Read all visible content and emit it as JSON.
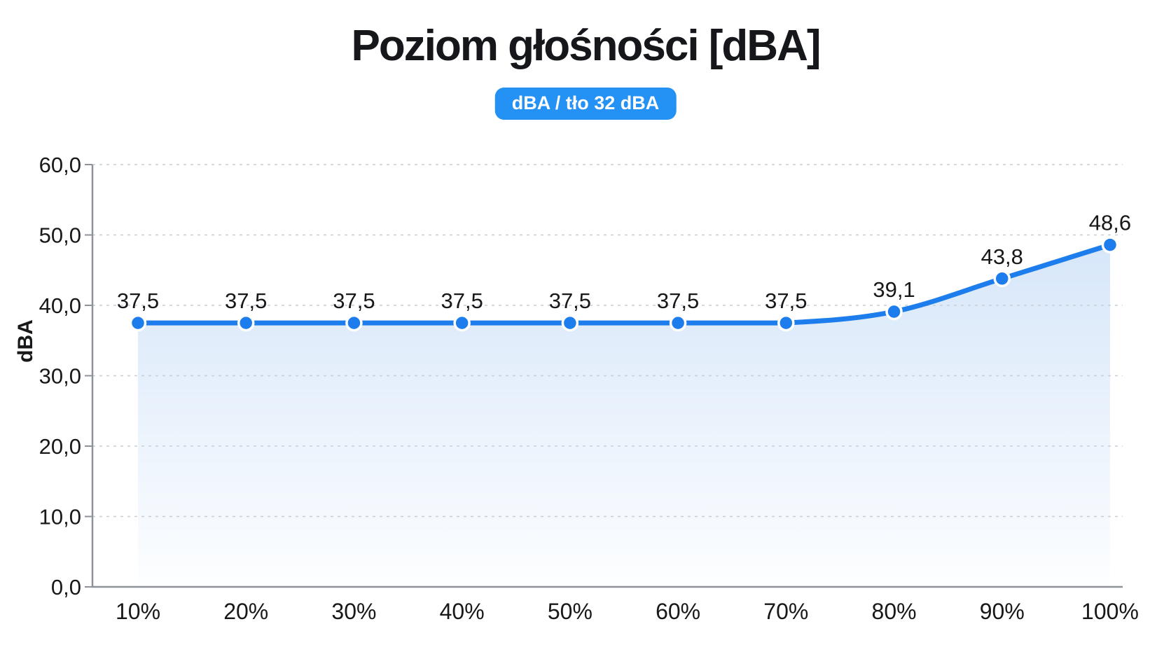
{
  "chart_data": {
    "type": "line",
    "title": "Poziom głośności [dBA]",
    "legend": "dBA / tło 32 dBA",
    "ylabel": "dBA",
    "categories": [
      "10%",
      "20%",
      "30%",
      "40%",
      "50%",
      "60%",
      "70%",
      "80%",
      "90%",
      "100%"
    ],
    "series": [
      {
        "name": "dBA / tło 32 dBA",
        "values": [
          37.5,
          37.5,
          37.5,
          37.5,
          37.5,
          37.5,
          37.5,
          39.1,
          43.8,
          48.6
        ],
        "point_labels": [
          "37,5",
          "37,5",
          "37,5",
          "37,5",
          "37,5",
          "37,5",
          "37,5",
          "39,1",
          "43,8",
          "48,6"
        ]
      }
    ],
    "ylim": [
      0,
      60
    ],
    "y_ticks": {
      "values": [
        0,
        10,
        20,
        30,
        40,
        50,
        60
      ],
      "labels": [
        "0,0",
        "10,0",
        "20,0",
        "30,0",
        "40,0",
        "50,0",
        "60,0"
      ]
    },
    "grid": "horizontal dashed",
    "legend_position": "top center",
    "colors": {
      "line": "#1e7ded",
      "point_fill": "#1e7ded",
      "point_border": "#ffffff",
      "area_top": "#d6e6f9",
      "area_bottom": "#fdfeff",
      "badge_bg": "#2491f4",
      "badge_text": "#ffffff",
      "grid_line": "#c9ced6",
      "axis_line": "#8e939b",
      "text": "#17181a"
    }
  }
}
